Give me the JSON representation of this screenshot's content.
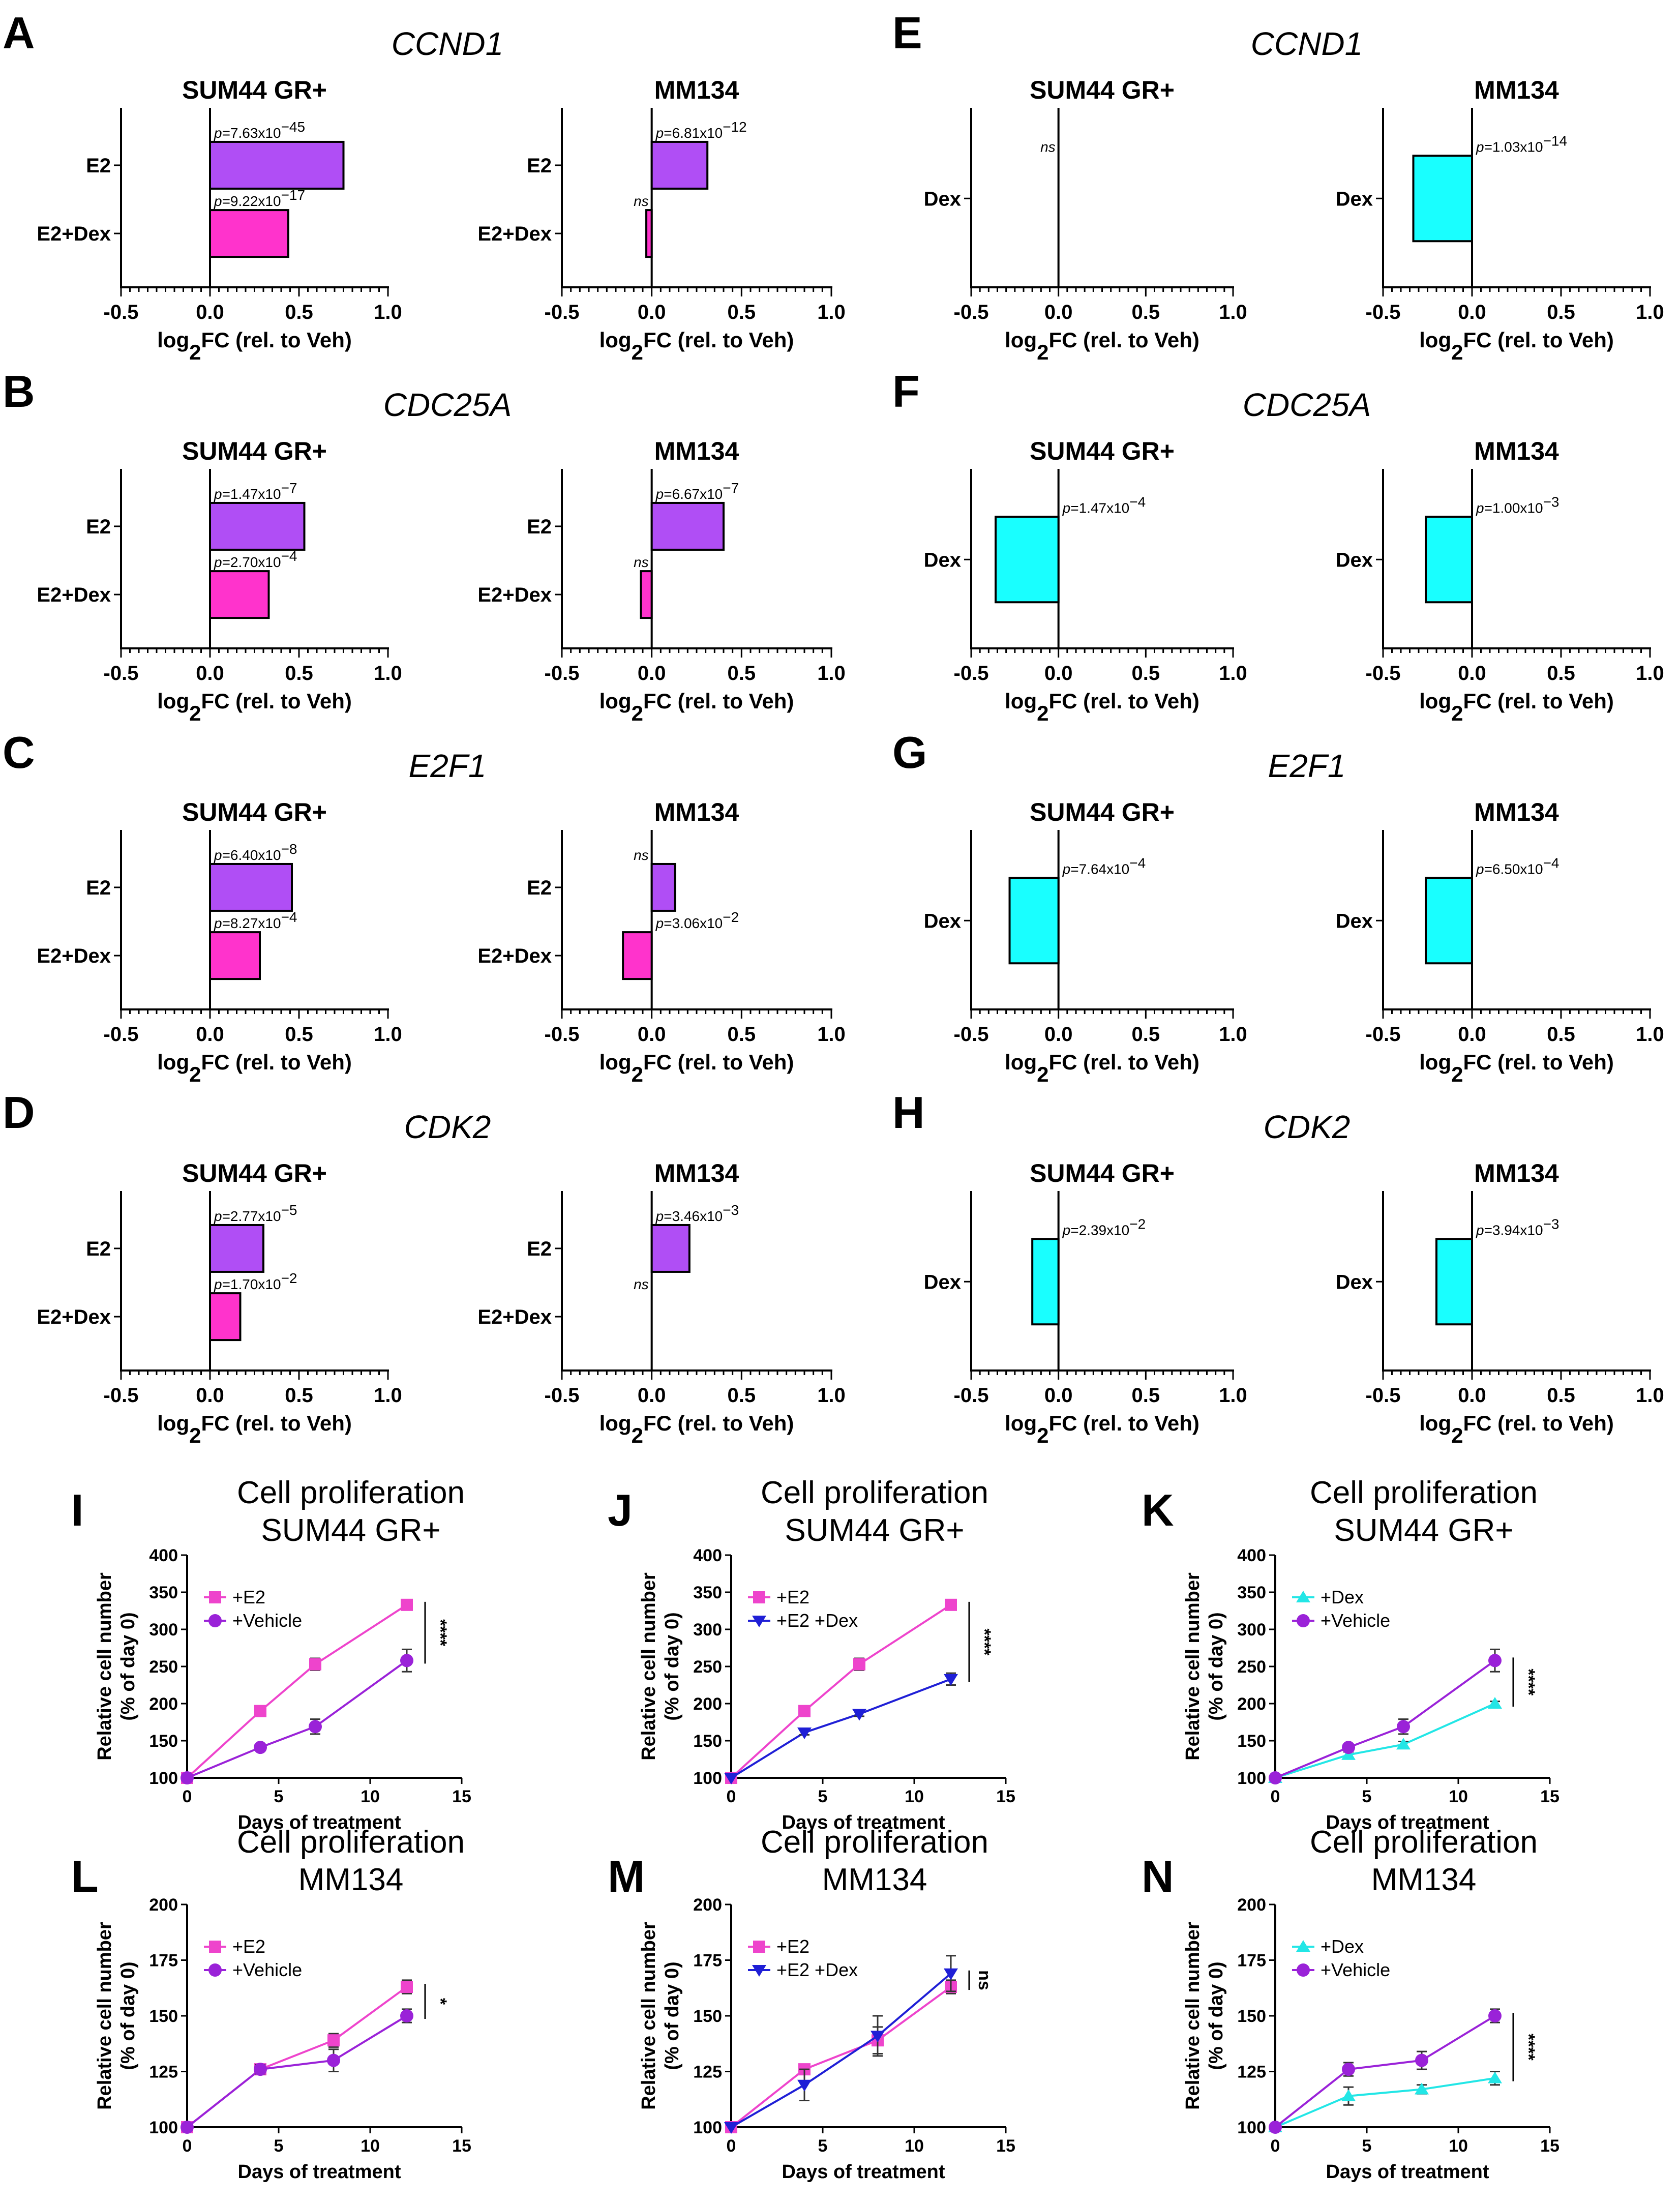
{
  "figure": {
    "background": "#ffffff"
  },
  "colors": {
    "E2": "#b04ef5",
    "E2+Dex": "#ff33cc",
    "Dex": "#19ffff",
    "E2 line": "#ee44cc",
    "Vehicle line": "#9a22d8",
    "E2+Dex line": "#1f1fd6",
    "Dex line": "#22e6e6"
  },
  "chart_data": [
    {
      "id": "A",
      "type": "bar",
      "orientation": "horizontal",
      "panel_label": "A",
      "gene": "CCND1",
      "title": "SUM44 GR+",
      "categories": [
        "E2",
        "E2+Dex"
      ],
      "values": [
        0.75,
        0.44
      ],
      "pvals": [
        {
          "pre": "p",
          "mid": "=7.63x10",
          "exp": "−45"
        },
        {
          "pre": "p",
          "mid": "=9.22x10",
          "exp": "−17"
        }
      ],
      "xlim": [
        -0.5,
        1.0
      ],
      "xticks": [
        "-0.5",
        "0.0",
        "0.5",
        "1.0"
      ],
      "xlabel": {
        "pre": "log",
        "sub": "2",
        "post": "FC (rel. to Veh)"
      }
    },
    {
      "id": "A2",
      "type": "bar",
      "orientation": "horizontal",
      "title": "MM134",
      "categories": [
        "E2",
        "E2+Dex"
      ],
      "values": [
        0.31,
        -0.03
      ],
      "pvals": [
        {
          "pre": "p",
          "mid": "=6.81x10",
          "exp": "−12"
        },
        {
          "pre": "ns",
          "mid": "",
          "exp": ""
        }
      ],
      "xlim": [
        -0.5,
        1.0
      ],
      "xticks": [
        "-0.5",
        "0.0",
        "0.5",
        "1.0"
      ],
      "xlabel": {
        "pre": "log",
        "sub": "2",
        "post": "FC (rel. to Veh)"
      }
    },
    {
      "id": "E",
      "type": "bar",
      "orientation": "horizontal",
      "panel_label": "E",
      "gene": "CCND1",
      "title": "SUM44 GR+",
      "categories": [
        "Dex"
      ],
      "values": [
        0.0
      ],
      "pvals": [
        {
          "pre": "ns",
          "mid": "",
          "exp": ""
        }
      ],
      "xlim": [
        -0.5,
        1.0
      ],
      "xticks": [
        "-0.5",
        "0.0",
        "0.5",
        "1.0"
      ],
      "xlabel": {
        "pre": "log",
        "sub": "2",
        "post": "FC (rel. to Veh)"
      }
    },
    {
      "id": "E2",
      "type": "bar",
      "orientation": "horizontal",
      "title": "MM134",
      "categories": [
        "Dex"
      ],
      "values": [
        -0.33
      ],
      "pvals": [
        {
          "pre": "p",
          "mid": "=1.03x10",
          "exp": "−14"
        }
      ],
      "xlim": [
        -0.5,
        1.0
      ],
      "xticks": [
        "-0.5",
        "0.0",
        "0.5",
        "1.0"
      ],
      "xlabel": {
        "pre": "log",
        "sub": "2",
        "post": "FC (rel. to Veh)"
      }
    },
    {
      "id": "B",
      "type": "bar",
      "orientation": "horizontal",
      "panel_label": "B",
      "gene": "CDC25A",
      "title": "SUM44 GR+",
      "categories": [
        "E2",
        "E2+Dex"
      ],
      "values": [
        0.53,
        0.33
      ],
      "pvals": [
        {
          "pre": "p",
          "mid": "=1.47x10",
          "exp": "−7"
        },
        {
          "pre": "p",
          "mid": "=2.70x10",
          "exp": "−4"
        }
      ],
      "xlim": [
        -0.5,
        1.0
      ],
      "xticks": [
        "-0.5",
        "0.0",
        "0.5",
        "1.0"
      ],
      "xlabel": {
        "pre": "log",
        "sub": "2",
        "post": "FC (rel. to Veh)"
      }
    },
    {
      "id": "B2",
      "type": "bar",
      "orientation": "horizontal",
      "title": "MM134",
      "categories": [
        "E2",
        "E2+Dex"
      ],
      "values": [
        0.4,
        -0.06
      ],
      "pvals": [
        {
          "pre": "p",
          "mid": "=6.67x10",
          "exp": "−7"
        },
        {
          "pre": "ns",
          "mid": "",
          "exp": ""
        }
      ],
      "xlim": [
        -0.5,
        1.0
      ],
      "xticks": [
        "-0.5",
        "0.0",
        "0.5",
        "1.0"
      ],
      "xlabel": {
        "pre": "log",
        "sub": "2",
        "post": "FC (rel. to Veh)"
      }
    },
    {
      "id": "F",
      "type": "bar",
      "orientation": "horizontal",
      "panel_label": "F",
      "gene": "CDC25A",
      "title": "SUM44 GR+",
      "categories": [
        "Dex"
      ],
      "values": [
        -0.36
      ],
      "pvals": [
        {
          "pre": "p",
          "mid": "=1.47x10",
          "exp": "−4"
        }
      ],
      "xlim": [
        -0.5,
        1.0
      ],
      "xticks": [
        "-0.5",
        "0.0",
        "0.5",
        "1.0"
      ],
      "xlabel": {
        "pre": "log",
        "sub": "2",
        "post": "FC (rel. to Veh)"
      }
    },
    {
      "id": "F2",
      "type": "bar",
      "orientation": "horizontal",
      "title": "MM134",
      "categories": [
        "Dex"
      ],
      "values": [
        -0.26
      ],
      "pvals": [
        {
          "pre": "p",
          "mid": "=1.00x10",
          "exp": "−3"
        }
      ],
      "xlim": [
        -0.5,
        1.0
      ],
      "xticks": [
        "-0.5",
        "0.0",
        "0.5",
        "1.0"
      ],
      "xlabel": {
        "pre": "log",
        "sub": "2",
        "post": "FC (rel. to Veh)"
      }
    },
    {
      "id": "C",
      "type": "bar",
      "orientation": "horizontal",
      "panel_label": "C",
      "gene": "E2F1",
      "title": "SUM44 GR+",
      "categories": [
        "E2",
        "E2+Dex"
      ],
      "values": [
        0.46,
        0.28
      ],
      "pvals": [
        {
          "pre": "p",
          "mid": "=6.40x10",
          "exp": "−8"
        },
        {
          "pre": "p",
          "mid": "=8.27x10",
          "exp": "−4"
        }
      ],
      "xlim": [
        -0.5,
        1.0
      ],
      "xticks": [
        "-0.5",
        "0.0",
        "0.5",
        "1.0"
      ],
      "xlabel": {
        "pre": "log",
        "sub": "2",
        "post": "FC (rel. to Veh)"
      }
    },
    {
      "id": "C2",
      "type": "bar",
      "orientation": "horizontal",
      "title": "MM134",
      "categories": [
        "E2",
        "E2+Dex"
      ],
      "values": [
        0.13,
        -0.16
      ],
      "pvals": [
        {
          "pre": "ns",
          "mid": "",
          "exp": ""
        },
        {
          "pre": "p",
          "mid": "=3.06x10",
          "exp": "−2"
        }
      ],
      "xlim": [
        -0.5,
        1.0
      ],
      "xticks": [
        "-0.5",
        "0.0",
        "0.5",
        "1.0"
      ],
      "xlabel": {
        "pre": "log",
        "sub": "2",
        "post": "FC (rel. to Veh)"
      }
    },
    {
      "id": "G",
      "type": "bar",
      "orientation": "horizontal",
      "panel_label": "G",
      "gene": "E2F1",
      "title": "SUM44 GR+",
      "categories": [
        "Dex"
      ],
      "values": [
        -0.28
      ],
      "pvals": [
        {
          "pre": "p",
          "mid": "=7.64x10",
          "exp": "−4"
        }
      ],
      "xlim": [
        -0.5,
        1.0
      ],
      "xticks": [
        "-0.5",
        "0.0",
        "0.5",
        "1.0"
      ],
      "xlabel": {
        "pre": "log",
        "sub": "2",
        "post": "FC (rel. to Veh)"
      }
    },
    {
      "id": "G2",
      "type": "bar",
      "orientation": "horizontal",
      "title": "MM134",
      "categories": [
        "Dex"
      ],
      "values": [
        -0.26
      ],
      "pvals": [
        {
          "pre": "p",
          "mid": "=6.50x10",
          "exp": "−4"
        }
      ],
      "xlim": [
        -0.5,
        1.0
      ],
      "xticks": [
        "-0.5",
        "0.0",
        "0.5",
        "1.0"
      ],
      "xlabel": {
        "pre": "log",
        "sub": "2",
        "post": "FC (rel. to Veh)"
      }
    },
    {
      "id": "D",
      "type": "bar",
      "orientation": "horizontal",
      "panel_label": "D",
      "gene": "CDK2",
      "title": "SUM44 GR+",
      "categories": [
        "E2",
        "E2+Dex"
      ],
      "values": [
        0.3,
        0.17
      ],
      "pvals": [
        {
          "pre": "p",
          "mid": "=2.77x10",
          "exp": "−5"
        },
        {
          "pre": "p",
          "mid": "=1.70x10",
          "exp": "−2"
        }
      ],
      "xlim": [
        -0.5,
        1.0
      ],
      "xticks": [
        "-0.5",
        "0.0",
        "0.5",
        "1.0"
      ],
      "xlabel": {
        "pre": "log",
        "sub": "2",
        "post": "FC (rel. to Veh)"
      }
    },
    {
      "id": "D2",
      "type": "bar",
      "orientation": "horizontal",
      "title": "MM134",
      "categories": [
        "E2",
        "E2+Dex"
      ],
      "values": [
        0.21,
        0.0
      ],
      "pvals": [
        {
          "pre": "p",
          "mid": "=3.46x10",
          "exp": "−3"
        },
        {
          "pre": "ns",
          "mid": "",
          "exp": ""
        }
      ],
      "xlim": [
        -0.5,
        1.0
      ],
      "xticks": [
        "-0.5",
        "0.0",
        "0.5",
        "1.0"
      ],
      "xlabel": {
        "pre": "log",
        "sub": "2",
        "post": "FC (rel. to Veh)"
      }
    },
    {
      "id": "H",
      "type": "bar",
      "orientation": "horizontal",
      "panel_label": "H",
      "gene": "CDK2",
      "title": "SUM44 GR+",
      "categories": [
        "Dex"
      ],
      "values": [
        -0.15
      ],
      "pvals": [
        {
          "pre": "p",
          "mid": "=2.39x10",
          "exp": "−2"
        }
      ],
      "xlim": [
        -0.5,
        1.0
      ],
      "xticks": [
        "-0.5",
        "0.0",
        "0.5",
        "1.0"
      ],
      "xlabel": {
        "pre": "log",
        "sub": "2",
        "post": "FC (rel. to Veh)"
      }
    },
    {
      "id": "H2",
      "type": "bar",
      "orientation": "horizontal",
      "title": "MM134",
      "categories": [
        "Dex"
      ],
      "values": [
        -0.2
      ],
      "pvals": [
        {
          "pre": "p",
          "mid": "=3.94x10",
          "exp": "−3"
        }
      ],
      "xlim": [
        -0.5,
        1.0
      ],
      "xticks": [
        "-0.5",
        "0.0",
        "0.5",
        "1.0"
      ],
      "xlabel": {
        "pre": "log",
        "sub": "2",
        "post": "FC (rel. to Veh)"
      }
    },
    {
      "id": "I",
      "type": "line",
      "panel_label": "I",
      "title": [
        "Cell proliferation",
        "SUM44 GR+"
      ],
      "xlabel": "Days of treatment",
      "ylabel": [
        "Relative cell number",
        "(% of day 0)"
      ],
      "xlim": [
        0,
        15
      ],
      "ylim": [
        100,
        400
      ],
      "xticks": [
        0,
        5,
        10,
        15
      ],
      "yticks": [
        100,
        150,
        200,
        250,
        300,
        350,
        400
      ],
      "series": [
        {
          "name": "+E2",
          "color": "#ee44cc",
          "marker": "square",
          "x": [
            0,
            4,
            7,
            12
          ],
          "y": [
            100,
            190,
            253,
            333
          ],
          "err": [
            0,
            4,
            8,
            5
          ]
        },
        {
          "name": "+Vehicle",
          "color": "#9a22d8",
          "marker": "circle",
          "x": [
            0,
            4,
            7,
            12
          ],
          "y": [
            100,
            141,
            169,
            258
          ],
          "err": [
            0,
            3,
            10,
            15
          ]
        }
      ],
      "significance": "****"
    },
    {
      "id": "J",
      "type": "line",
      "panel_label": "J",
      "title": [
        "Cell proliferation",
        "SUM44 GR+"
      ],
      "xlabel": "Days of treatment",
      "ylabel": [
        "Relative cell number",
        "(% of day 0)"
      ],
      "xlim": [
        0,
        15
      ],
      "ylim": [
        100,
        400
      ],
      "xticks": [
        0,
        5,
        10,
        15
      ],
      "yticks": [
        100,
        150,
        200,
        250,
        300,
        350,
        400
      ],
      "series": [
        {
          "name": "+E2",
          "color": "#ee44cc",
          "marker": "square",
          "x": [
            0,
            4,
            7,
            12
          ],
          "y": [
            100,
            190,
            253,
            333
          ],
          "err": [
            0,
            4,
            8,
            5
          ]
        },
        {
          "name": "+E2 +Dex",
          "color": "#1f1fd6",
          "marker": "triangle-down",
          "x": [
            0,
            4,
            7,
            12
          ],
          "y": [
            100,
            161,
            186,
            233
          ],
          "err": [
            0,
            3,
            3,
            8
          ]
        }
      ],
      "significance": "****"
    },
    {
      "id": "K",
      "type": "line",
      "panel_label": "K",
      "title": [
        "Cell proliferation",
        "SUM44 GR+"
      ],
      "xlabel": "Days of treatment",
      "ylabel": [
        "Relative cell number",
        "(% of day 0)"
      ],
      "xlim": [
        0,
        15
      ],
      "ylim": [
        100,
        400
      ],
      "xticks": [
        0,
        5,
        10,
        15
      ],
      "yticks": [
        100,
        150,
        200,
        250,
        300,
        350,
        400
      ],
      "series": [
        {
          "name": "+Dex",
          "color": "#22e6e6",
          "marker": "triangle-up",
          "x": [
            0,
            4,
            7,
            12
          ],
          "y": [
            100,
            131,
            145,
            200
          ],
          "err": [
            0,
            4,
            4,
            3
          ]
        },
        {
          "name": "+Vehicle",
          "color": "#9a22d8",
          "marker": "circle",
          "x": [
            0,
            4,
            7,
            12
          ],
          "y": [
            100,
            141,
            169,
            258
          ],
          "err": [
            0,
            3,
            10,
            15
          ]
        }
      ],
      "significance": "****"
    },
    {
      "id": "L",
      "type": "line",
      "panel_label": "L",
      "title": [
        "Cell proliferation",
        "MM134"
      ],
      "xlabel": "Days of treatment",
      "ylabel": [
        "Relative cell number",
        "(% of day 0)"
      ],
      "xlim": [
        0,
        15
      ],
      "ylim": [
        100,
        200
      ],
      "xticks": [
        0,
        5,
        10,
        15
      ],
      "yticks": [
        100,
        125,
        150,
        175,
        200
      ],
      "series": [
        {
          "name": "+E2",
          "color": "#ee44cc",
          "marker": "square",
          "x": [
            0,
            4,
            8,
            12
          ],
          "y": [
            100,
            126,
            139,
            163
          ],
          "err": [
            0,
            2,
            3,
            3
          ]
        },
        {
          "name": "+Vehicle",
          "color": "#9a22d8",
          "marker": "circle",
          "x": [
            0,
            4,
            8,
            12
          ],
          "y": [
            100,
            126,
            130,
            150
          ],
          "err": [
            0,
            2,
            5,
            3
          ]
        }
      ],
      "significance": "*"
    },
    {
      "id": "M",
      "type": "line",
      "panel_label": "M",
      "title": [
        "Cell proliferation",
        "MM134"
      ],
      "xlabel": "Days of treatment",
      "ylabel": [
        "Relative cell number",
        "(% of day 0)"
      ],
      "xlim": [
        0,
        15
      ],
      "ylim": [
        100,
        200
      ],
      "xticks": [
        0,
        5,
        10,
        15
      ],
      "yticks": [
        100,
        125,
        150,
        175,
        200
      ],
      "series": [
        {
          "name": "+E2",
          "color": "#ee44cc",
          "marker": "square",
          "x": [
            0,
            4,
            8,
            12
          ],
          "y": [
            100,
            126,
            139,
            163
          ],
          "err": [
            0,
            2,
            6,
            3
          ]
        },
        {
          "name": "+E2 +Dex",
          "color": "#1f1fd6",
          "marker": "triangle-down",
          "x": [
            0,
            4,
            8,
            12
          ],
          "y": [
            100,
            119,
            141,
            169
          ],
          "err": [
            0,
            7,
            9,
            8
          ]
        }
      ],
      "significance": "ns"
    },
    {
      "id": "N",
      "type": "line",
      "panel_label": "N",
      "title": [
        "Cell proliferation",
        "MM134"
      ],
      "xlabel": "Days of treatment",
      "ylabel": [
        "Relative cell number",
        "(% of day 0)"
      ],
      "xlim": [
        0,
        15
      ],
      "ylim": [
        100,
        200
      ],
      "xticks": [
        0,
        5,
        10,
        15
      ],
      "yticks": [
        100,
        125,
        150,
        175,
        200
      ],
      "series": [
        {
          "name": "+Dex",
          "color": "#22e6e6",
          "marker": "triangle-up",
          "x": [
            0,
            4,
            8,
            12
          ],
          "y": [
            100,
            114,
            117,
            122
          ],
          "err": [
            0,
            4,
            2,
            3
          ]
        },
        {
          "name": "+Vehicle",
          "color": "#9a22d8",
          "marker": "circle",
          "x": [
            0,
            4,
            8,
            12
          ],
          "y": [
            100,
            126,
            130,
            150
          ],
          "err": [
            0,
            3,
            4,
            3
          ]
        }
      ],
      "significance": "****"
    }
  ]
}
